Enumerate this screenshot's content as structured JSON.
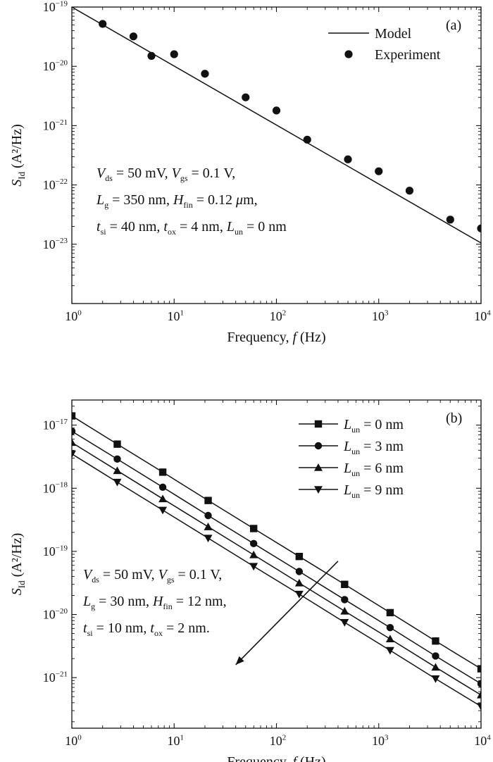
{
  "chart_data": [
    {
      "type": "line",
      "panel_label": "(a)",
      "xlabel": {
        "pre": "Frequency, ",
        "var": "f",
        "post": " (Hz)"
      },
      "ylabel": {
        "main": "S",
        "sub": "Id",
        "unit": " (A²/Hz)"
      },
      "x_scale": "log",
      "y_scale": "log",
      "xlim": [
        1,
        10000
      ],
      "ylim": [
        1e-24,
        1e-19
      ],
      "x_ticks": [
        {
          "mantissa": "10",
          "exp": "0"
        },
        {
          "mantissa": "10",
          "exp": "1"
        },
        {
          "mantissa": "10",
          "exp": "2"
        },
        {
          "mantissa": "10",
          "exp": "3"
        },
        {
          "mantissa": "10",
          "exp": "4"
        }
      ],
      "y_ticks": [
        {
          "mantissa": "10",
          "exp": "−23",
          "value": 1e-23
        },
        {
          "mantissa": "10",
          "exp": "−22",
          "value": 1e-22
        },
        {
          "mantissa": "10",
          "exp": "−21",
          "value": 1e-21
        },
        {
          "mantissa": "10",
          "exp": "−20",
          "value": 1e-20
        },
        {
          "mantissa": "10",
          "exp": "−19",
          "value": 1e-19
        }
      ],
      "legend_position": "top-right",
      "series": [
        {
          "name": "Model",
          "style": "line",
          "x": [
            1,
            10000
          ],
          "y": [
            1e-19,
            1.05e-23
          ]
        },
        {
          "name": "Experiment",
          "style": "dot",
          "x": [
            2,
            4,
            6,
            10,
            20,
            50,
            100,
            200,
            500,
            1000,
            2000,
            5000,
            10000
          ],
          "y": [
            5.2e-20,
            3.2e-20,
            1.5e-20,
            1.6e-20,
            7.5e-21,
            3e-21,
            1.8e-21,
            5.8e-22,
            2.7e-22,
            1.7e-22,
            8e-23,
            2.6e-23,
            1.85e-23
          ]
        }
      ],
      "annotation": [
        [
          {
            "t": "V",
            "s": "i"
          },
          {
            "t": "ds",
            "s": "sub"
          },
          {
            "t": " = 50 mV, "
          },
          {
            "t": "V",
            "s": "i"
          },
          {
            "t": "gs",
            "s": "sub"
          },
          {
            "t": " = 0.1 V,"
          }
        ],
        [
          {
            "t": "L",
            "s": "i"
          },
          {
            "t": "g",
            "s": "sub"
          },
          {
            "t": " = 350 nm, "
          },
          {
            "t": "H",
            "s": "i"
          },
          {
            "t": "fin",
            "s": "sub"
          },
          {
            "t": " = 0.12 "
          },
          {
            "t": "μ",
            "s": "i"
          },
          {
            "t": "m,"
          }
        ],
        [
          {
            "t": "t",
            "s": "i"
          },
          {
            "t": "si",
            "s": "sub"
          },
          {
            "t": " = 40 nm, "
          },
          {
            "t": "t",
            "s": "i"
          },
          {
            "t": "ox",
            "s": "sub"
          },
          {
            "t": " = 4 nm, "
          },
          {
            "t": "L",
            "s": "i"
          },
          {
            "t": "un",
            "s": "sub"
          },
          {
            "t": " = 0 nm"
          }
        ]
      ]
    },
    {
      "type": "line",
      "panel_label": "(b)",
      "xlabel": {
        "pre": "Frequency, ",
        "var": "f",
        "post": " (Hz)"
      },
      "ylabel": {
        "main": "S",
        "sub": "Id",
        "unit": " (A²/Hz)"
      },
      "x_scale": "log",
      "y_scale": "log",
      "xlim": [
        1,
        10000
      ],
      "ylim": [
        1.58e-22,
        2.5e-17
      ],
      "x_ticks": [
        {
          "mantissa": "10",
          "exp": "0"
        },
        {
          "mantissa": "10",
          "exp": "1"
        },
        {
          "mantissa": "10",
          "exp": "2"
        },
        {
          "mantissa": "10",
          "exp": "3"
        },
        {
          "mantissa": "10",
          "exp": "4"
        }
      ],
      "y_ticks": [
        {
          "mantissa": "10",
          "exp": "−21",
          "value": 1e-21
        },
        {
          "mantissa": "10",
          "exp": "−20",
          "value": 1e-20
        },
        {
          "mantissa": "10",
          "exp": "−19",
          "value": 1e-19
        },
        {
          "mantissa": "10",
          "exp": "−18",
          "value": 1e-18
        },
        {
          "mantissa": "10",
          "exp": "−17",
          "value": 1e-17
        }
      ],
      "legend_position": "top-right",
      "series": [
        {
          "name": "L_un = 0 nm",
          "legend": [
            {
              "t": "L",
              "s": "i"
            },
            {
              "t": "un",
              "s": "sub"
            },
            {
              "t": " = 0 nm"
            }
          ],
          "marker": "square",
          "x": [
            1,
            2.78,
            7.74,
            21.5,
            59.9,
            167,
            464,
            1292,
            3594,
            10000
          ],
          "y": [
            1.4e-17,
            5e-18,
            1.8e-18,
            6.4e-19,
            2.3e-19,
            8.3e-20,
            3e-20,
            1.07e-20,
            3.8e-21,
            1.38e-21
          ]
        },
        {
          "name": "L_un = 3 nm",
          "legend": [
            {
              "t": "L",
              "s": "i"
            },
            {
              "t": "un",
              "s": "sub"
            },
            {
              "t": " = 3 nm"
            }
          ],
          "marker": "circle",
          "x": [
            1,
            2.78,
            7.74,
            21.5,
            59.9,
            167,
            464,
            1292,
            3594,
            10000
          ],
          "y": [
            8e-18,
            2.9e-18,
            1.04e-18,
            3.7e-19,
            1.33e-19,
            4.8e-20,
            1.72e-20,
            6.2e-21,
            2.2e-21,
            8e-22
          ]
        },
        {
          "name": "L_un = 6 nm",
          "legend": [
            {
              "t": "L",
              "s": "i"
            },
            {
              "t": "un",
              "s": "sub"
            },
            {
              "t": " = 6 nm"
            }
          ],
          "marker": "triangle-up",
          "x": [
            1,
            2.78,
            7.74,
            21.5,
            59.9,
            167,
            464,
            1292,
            3594,
            10000
          ],
          "y": [
            5.3e-18,
            1.9e-18,
            6.8e-19,
            2.45e-19,
            8.8e-20,
            3.15e-20,
            1.13e-20,
            4.1e-21,
            1.46e-21,
            5.3e-22
          ]
        },
        {
          "name": "L_un = 9 nm",
          "legend": [
            {
              "t": "L",
              "s": "i"
            },
            {
              "t": "un",
              "s": "sub"
            },
            {
              "t": " = 9 nm"
            }
          ],
          "marker": "triangle-down",
          "x": [
            1,
            2.78,
            7.74,
            21.5,
            59.9,
            167,
            464,
            1292,
            3594,
            10000
          ],
          "y": [
            3.5e-18,
            1.25e-18,
            4.5e-19,
            1.62e-19,
            5.8e-20,
            2.1e-20,
            7.5e-21,
            2.7e-21,
            9.6e-22,
            3.5e-22
          ]
        }
      ],
      "arrow": {
        "from": [
          400,
          7e-20
        ],
        "to": [
          40,
          1.6e-21
        ]
      },
      "annotation": [
        [
          {
            "t": "V",
            "s": "i"
          },
          {
            "t": "ds",
            "s": "sub"
          },
          {
            "t": " = 50 mV, "
          },
          {
            "t": "V",
            "s": "i"
          },
          {
            "t": "gs",
            "s": "sub"
          },
          {
            "t": " = 0.1 V,"
          }
        ],
        [
          {
            "t": "L",
            "s": "i"
          },
          {
            "t": "g",
            "s": "sub"
          },
          {
            "t": " = 30 nm, "
          },
          {
            "t": "H",
            "s": "i"
          },
          {
            "t": "fin",
            "s": "sub"
          },
          {
            "t": " = 12 nm,"
          }
        ],
        [
          {
            "t": "t",
            "s": "i"
          },
          {
            "t": "si",
            "s": "sub"
          },
          {
            "t": " = 10 nm, "
          },
          {
            "t": "t",
            "s": "i"
          },
          {
            "t": "ox",
            "s": "sub"
          },
          {
            "t": " = 2 nm."
          }
        ]
      ]
    }
  ]
}
